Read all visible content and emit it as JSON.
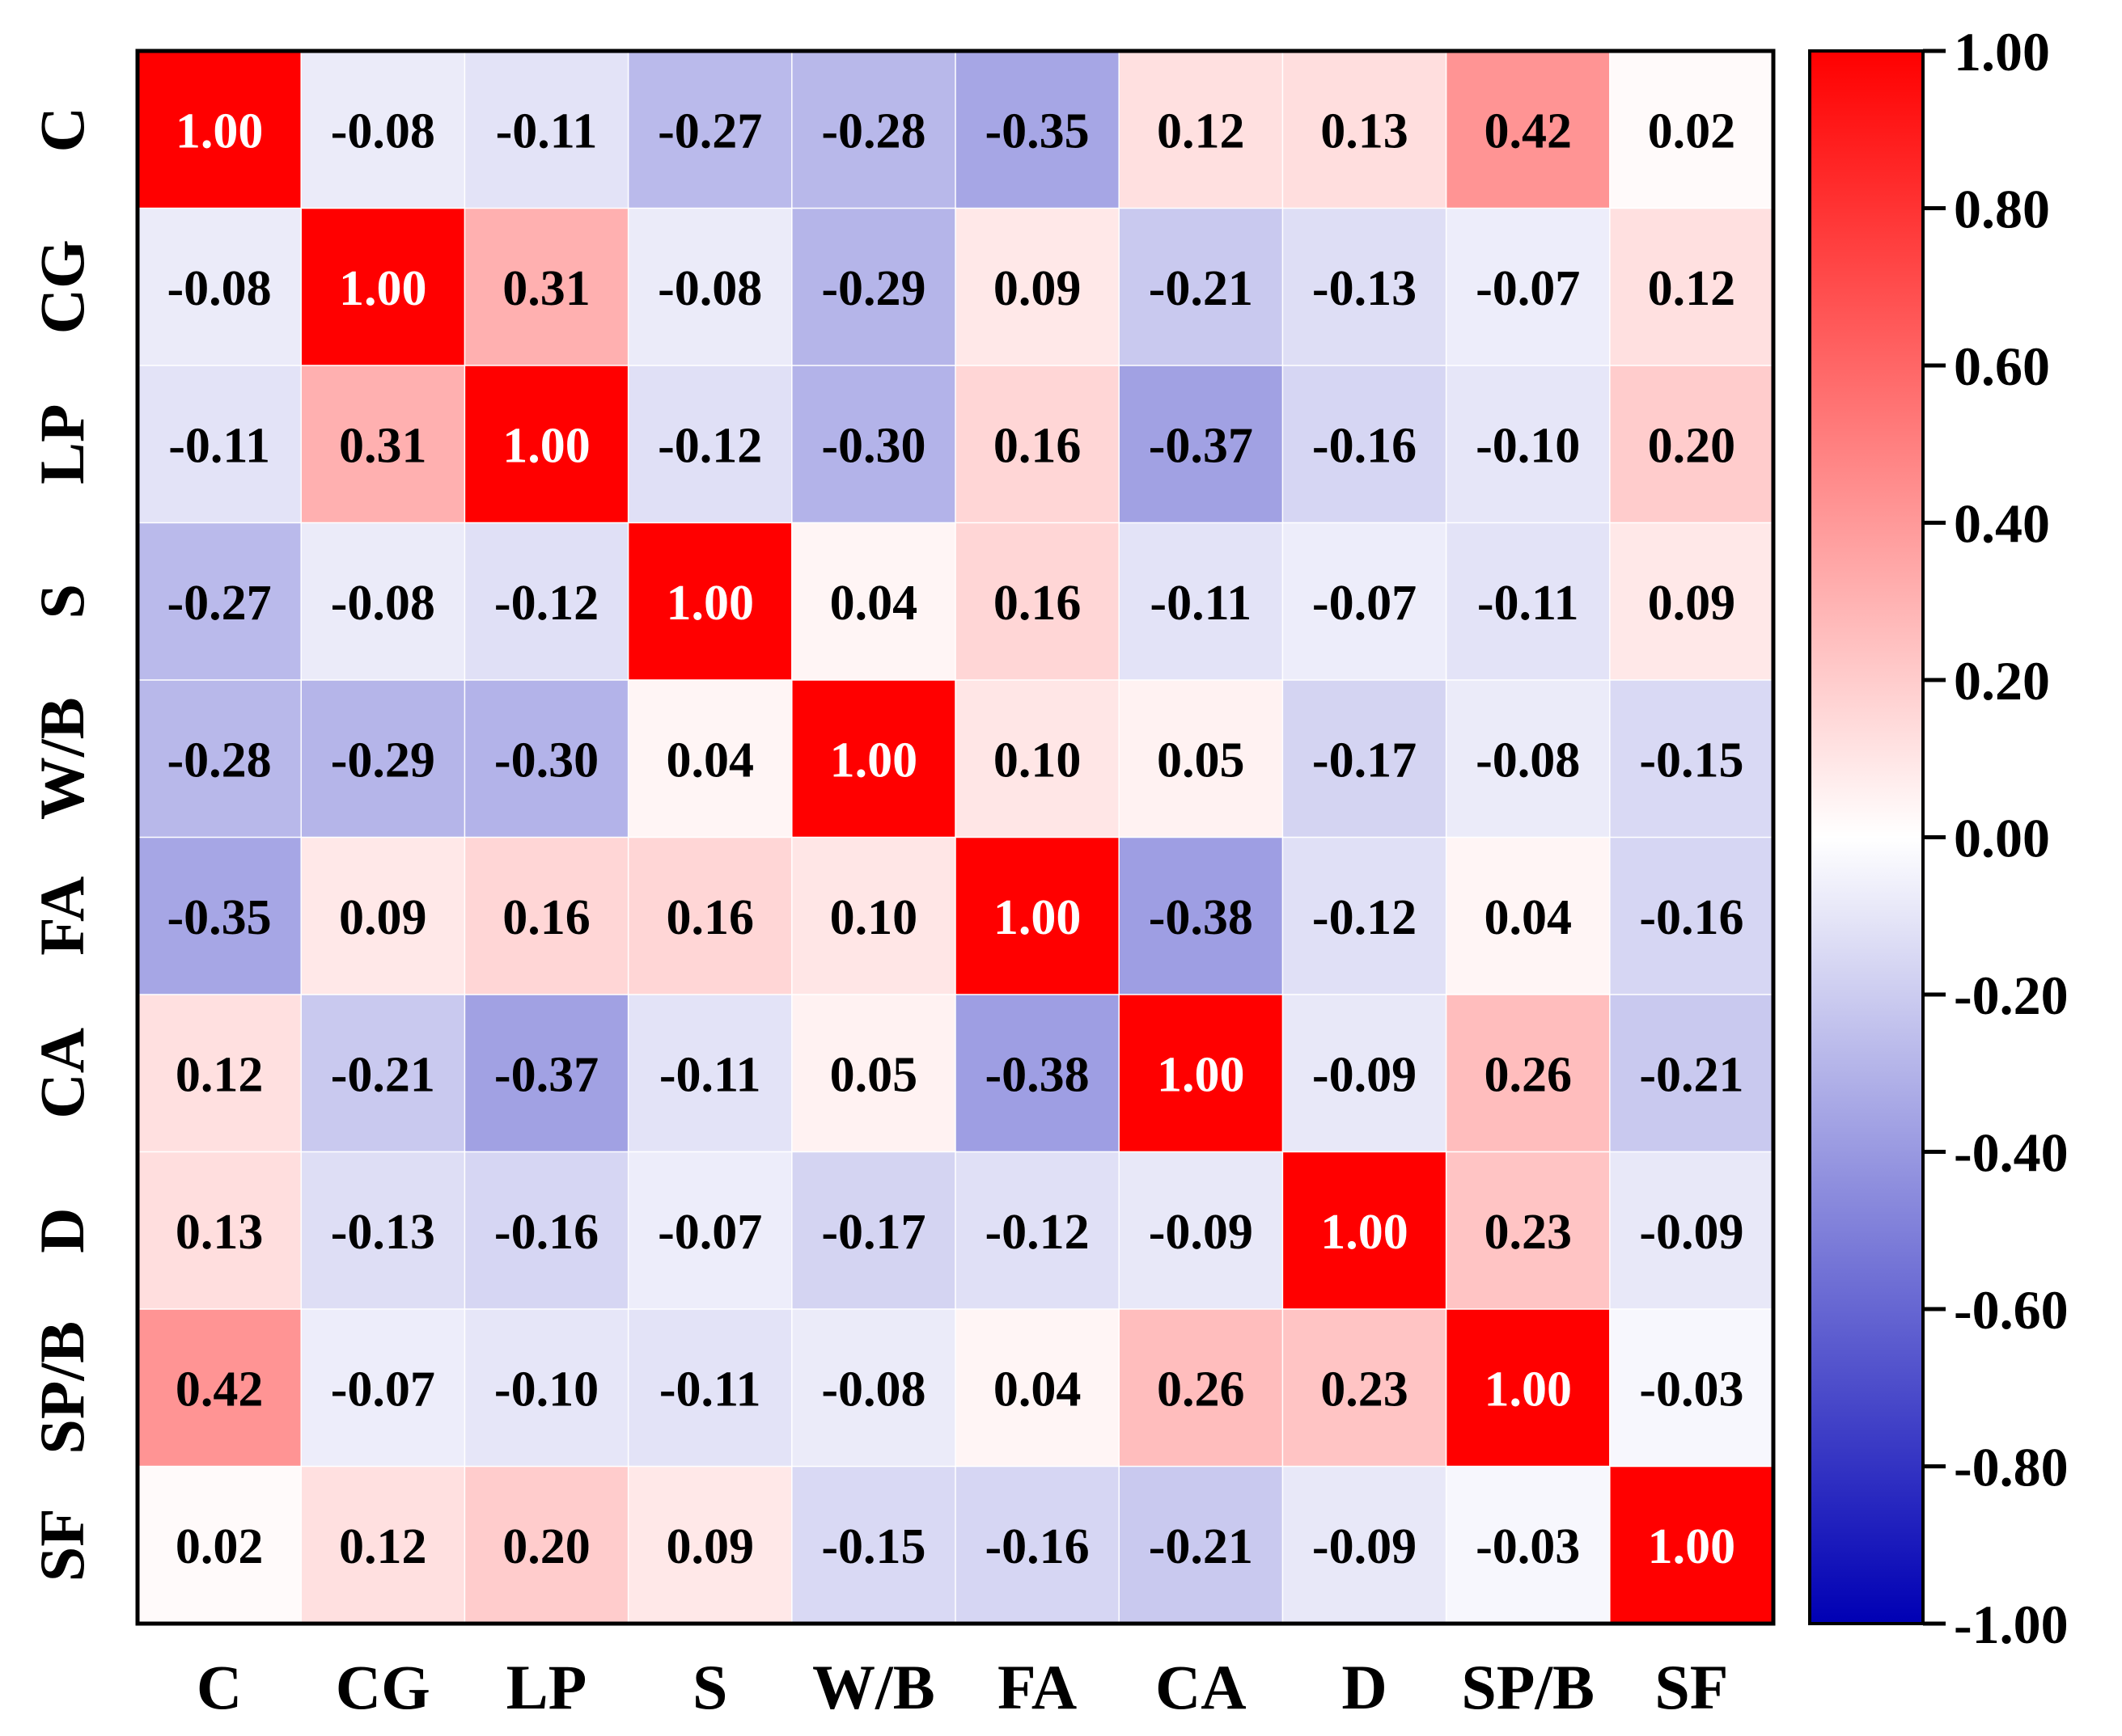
{
  "chart_data": {
    "type": "heatmap",
    "title": "",
    "xlabel": "",
    "ylabel": "",
    "x_labels": [
      "C",
      "CG",
      "LP",
      "S",
      "W/B",
      "FA",
      "CA",
      "D",
      "SP/B",
      "SF"
    ],
    "y_labels": [
      "C",
      "CG",
      "LP",
      "S",
      "W/B",
      "FA",
      "CA",
      "D",
      "SP/B",
      "SF"
    ],
    "matrix": [
      [
        1.0,
        -0.08,
        -0.11,
        -0.27,
        -0.28,
        -0.35,
        0.12,
        0.13,
        0.42,
        0.02
      ],
      [
        -0.08,
        1.0,
        0.31,
        -0.08,
        -0.29,
        0.09,
        -0.21,
        -0.13,
        -0.07,
        0.12
      ],
      [
        -0.11,
        0.31,
        1.0,
        -0.12,
        -0.3,
        0.16,
        -0.37,
        -0.16,
        -0.1,
        0.2
      ],
      [
        -0.27,
        -0.08,
        -0.12,
        1.0,
        0.04,
        0.16,
        -0.11,
        -0.07,
        -0.11,
        0.09
      ],
      [
        -0.28,
        -0.29,
        -0.3,
        0.04,
        1.0,
        0.1,
        0.05,
        -0.17,
        -0.08,
        -0.15
      ],
      [
        -0.35,
        0.09,
        0.16,
        0.16,
        0.1,
        1.0,
        -0.38,
        -0.12,
        0.04,
        -0.16
      ],
      [
        0.12,
        -0.21,
        -0.37,
        -0.11,
        0.05,
        -0.38,
        1.0,
        -0.09,
        0.26,
        -0.21
      ],
      [
        0.13,
        -0.13,
        -0.16,
        -0.07,
        -0.17,
        -0.12,
        -0.09,
        1.0,
        0.23,
        -0.09
      ],
      [
        0.42,
        -0.07,
        -0.1,
        -0.11,
        -0.08,
        0.04,
        0.26,
        0.23,
        1.0,
        -0.03
      ],
      [
        0.02,
        0.12,
        0.2,
        0.09,
        -0.15,
        -0.16,
        -0.21,
        -0.09,
        -0.03,
        1.0
      ]
    ],
    "value_format": "2-decimal",
    "value_range": [
      -1.0,
      1.0
    ],
    "colorbar": {
      "ticks": [
        1.0,
        0.8,
        0.6,
        0.4,
        0.2,
        0.0,
        -0.2,
        -0.4,
        -0.6,
        -0.8,
        -1.0
      ],
      "tick_labels": [
        "1.00",
        "0.80",
        "0.60",
        "0.40",
        "0.20",
        "0.00",
        "-0.20",
        "-0.40",
        "-0.60",
        "-0.80",
        "-1.00"
      ],
      "min_color": "#0000b4",
      "mid_color": "#ffffff",
      "max_color": "#ff0000"
    },
    "text_color_dark": "#000000",
    "text_color_light": "#ffffff"
  }
}
